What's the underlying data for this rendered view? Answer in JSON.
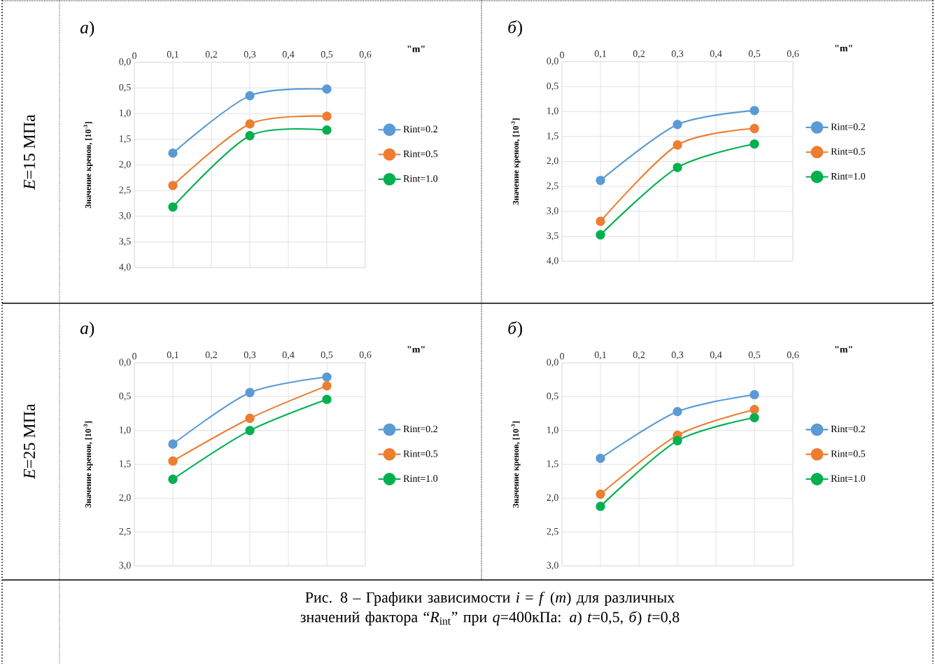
{
  "chart_data": [
    {
      "type": "line",
      "title": "*а*)",
      "xlabel": "\"m\"",
      "ylabel": "Значение кренов, [10$^{-3}$]",
      "x": [
        0.1,
        0.3,
        0.5
      ],
      "series": [
        {
          "name": "Rint=0.2",
          "color": "#5b9bd5",
          "values": [
            1.77,
            0.65,
            0.52
          ]
        },
        {
          "name": "Rint=0.5",
          "color": "#ed7d31",
          "values": [
            2.4,
            1.2,
            1.05
          ]
        },
        {
          "name": "Rint=1.0",
          "color": "#00b050",
          "values": [
            2.82,
            1.43,
            1.32
          ]
        }
      ],
      "xlim": [
        0,
        0.6
      ],
      "xticks": [
        0,
        {
          "value": 0.1,
          "label": "0,1"
        },
        {
          "value": 0.2,
          "label": "0,2"
        },
        {
          "value": 0.3,
          "label": "0,3"
        },
        {
          "value": 0.4,
          "label": "0,4"
        },
        {
          "value": 0.5,
          "label": "0,5"
        },
        {
          "value": 0.6,
          "label": "0,6"
        }
      ],
      "ylim": [
        4.0,
        0.0
      ],
      "yticks": [
        {
          "value": 0,
          "label": "0,0"
        },
        {
          "value": 0.5,
          "label": "0,5"
        },
        {
          "value": 1,
          "label": "1,0"
        },
        {
          "value": 1.5,
          "label": "1,5"
        },
        {
          "value": 2,
          "label": "2,0"
        },
        {
          "value": 2.5,
          "label": "2,5"
        },
        {
          "value": 3,
          "label": "3,0"
        },
        {
          "value": 3.5,
          "label": "3,5"
        },
        {
          "value": 4,
          "label": "4,0"
        }
      ],
      "grid": true,
      "legend": "right",
      "marker": "circle",
      "line_style": "solid",
      "annotations": [
        "*E*=15 МПа"
      ]
    },
    {
      "type": "line",
      "title": "*б*)",
      "xlabel": "\"m\"",
      "ylabel": "Значение кренов, [10$^{-3}$]",
      "x": [
        0.1,
        0.3,
        0.5
      ],
      "series": [
        {
          "name": "Rint=0.2",
          "color": "#5b9bd5",
          "values": [
            2.38,
            1.26,
            0.98
          ]
        },
        {
          "name": "Rint=0.5",
          "color": "#ed7d31",
          "values": [
            3.2,
            1.67,
            1.34
          ]
        },
        {
          "name": "Rint=1.0",
          "color": "#00b050",
          "values": [
            3.47,
            2.12,
            1.65
          ]
        }
      ],
      "xlim": [
        0,
        0.6
      ],
      "xticks": [
        0,
        {
          "value": 0.1,
          "label": "0,1"
        },
        {
          "value": 0.2,
          "label": "0,2"
        },
        {
          "value": 0.3,
          "label": "0,3"
        },
        {
          "value": 0.4,
          "label": "0,4"
        },
        {
          "value": 0.5,
          "label": "0,5"
        },
        {
          "value": 0.6,
          "label": "0,6"
        }
      ],
      "ylim": [
        4.0,
        0.0
      ],
      "yticks": [
        {
          "value": 0,
          "label": "0,0"
        },
        {
          "value": 0.5,
          "label": "0,5"
        },
        {
          "value": 1,
          "label": "1,0"
        },
        {
          "value": 1.5,
          "label": "1,5"
        },
        {
          "value": 2,
          "label": "2,0"
        },
        {
          "value": 2.5,
          "label": "2,5"
        },
        {
          "value": 3,
          "label": "3,0"
        },
        {
          "value": 3.5,
          "label": "3,5"
        },
        {
          "value": 4,
          "label": "4,0"
        }
      ],
      "grid": true,
      "legend": "right",
      "marker": "circle",
      "line_style": "solid"
    },
    {
      "type": "line",
      "title": "*а*)",
      "xlabel": "\"m\"",
      "ylabel": "Значение кренов, [10$^{-3}$]",
      "x": [
        0.1,
        0.3,
        0.5
      ],
      "series": [
        {
          "name": "Rint=0.2",
          "color": "#5b9bd5",
          "values": [
            1.2,
            0.44,
            0.21
          ]
        },
        {
          "name": "Rint=0.5",
          "color": "#ed7d31",
          "values": [
            1.45,
            0.82,
            0.34
          ]
        },
        {
          "name": "Rint=1.0",
          "color": "#00b050",
          "values": [
            1.72,
            1.0,
            0.54
          ]
        }
      ],
      "xlim": [
        0,
        0.6
      ],
      "xticks": [
        0,
        {
          "value": 0.1,
          "label": "0,1"
        },
        {
          "value": 0.2,
          "label": "0,2"
        },
        {
          "value": 0.3,
          "label": "0,3"
        },
        {
          "value": 0.4,
          "label": "0,4"
        },
        {
          "value": 0.5,
          "label": "0,5"
        },
        {
          "value": 0.6,
          "label": "0,6"
        }
      ],
      "ylim": [
        3.0,
        0.0
      ],
      "yticks": [
        {
          "value": 0,
          "label": "0,0"
        },
        {
          "value": 0.5,
          "label": "0,5"
        },
        {
          "value": 1,
          "label": "1,0"
        },
        {
          "value": 1.5,
          "label": "1,5"
        },
        {
          "value": 2,
          "label": "2,0"
        },
        {
          "value": 2.5,
          "label": "2,5"
        },
        {
          "value": 3,
          "label": "3,0"
        }
      ],
      "grid": true,
      "legend": "right",
      "marker": "circle",
      "line_style": "solid",
      "annotations": [
        "*E*=25 МПа"
      ]
    },
    {
      "type": "line",
      "title": "*б*)",
      "xlabel": "\"m\"",
      "ylabel": "Значение кренов, [10$^{-3}$]",
      "x": [
        0.1,
        0.3,
        0.5
      ],
      "series": [
        {
          "name": "Rint=0.2",
          "color": "#5b9bd5",
          "values": [
            1.41,
            0.72,
            0.47
          ]
        },
        {
          "name": "Rint=0.5",
          "color": "#ed7d31",
          "values": [
            1.94,
            1.07,
            0.69
          ]
        },
        {
          "name": "Rint=1.0",
          "color": "#00b050",
          "values": [
            2.12,
            1.15,
            0.81
          ]
        }
      ],
      "xlim": [
        0,
        0.6
      ],
      "xticks": [
        0,
        {
          "value": 0.1,
          "label": "0,1"
        },
        {
          "value": 0.2,
          "label": "0,2"
        },
        {
          "value": 0.3,
          "label": "0,3"
        },
        {
          "value": 0.4,
          "label": "0,4"
        },
        {
          "value": 0.5,
          "label": "0,5"
        },
        {
          "value": 0.6,
          "label": "0,6"
        }
      ],
      "ylim": [
        3.0,
        0.0
      ],
      "yticks": [
        {
          "value": 0,
          "label": "0,0"
        },
        {
          "value": 0.5,
          "label": "0,5"
        },
        {
          "value": 1,
          "label": "1,0"
        },
        {
          "value": 1.5,
          "label": "1,5"
        },
        {
          "value": 2,
          "label": "2,0"
        },
        {
          "value": 2.5,
          "label": "2,5"
        },
        {
          "value": 3,
          "label": "3,0"
        }
      ],
      "grid": true,
      "legend": "right",
      "marker": "circle",
      "line_style": "solid",
      "annotations": [
        "Рис. 8 – Графики зависимости *i* = *f* (*m*) для различных значений фактора “*R*$_{int}$” при *q*=400кПа: *а*) *t*=0,5,  *б*) *t*=0,8"
      ]
    }
  ]
}
